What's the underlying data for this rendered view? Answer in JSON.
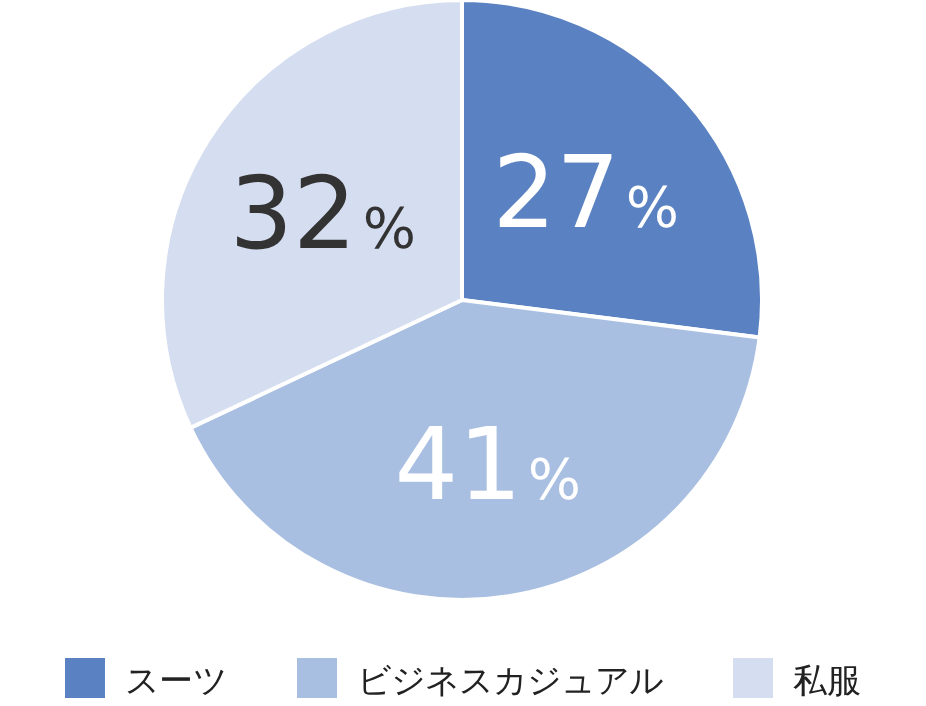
{
  "chart_data": {
    "type": "pie",
    "categories": [
      "スーツ",
      "ビジネスカジュアル",
      "私服"
    ],
    "values": [
      27,
      41,
      32
    ],
    "colors": [
      "#5a81c1",
      "#a9bfe1",
      "#d5def0"
    ],
    "value_labels": [
      "27%",
      "41%",
      "32%"
    ],
    "legend": "bottom"
  }
}
